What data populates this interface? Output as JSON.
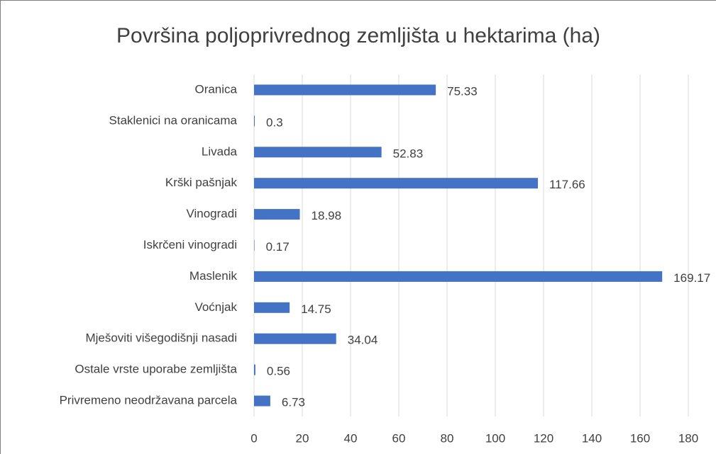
{
  "chart_data": {
    "type": "bar",
    "orientation": "horizontal",
    "title": "Površina poljoprivrednog zemljišta u hektarima (ha)",
    "categories": [
      "Oranica",
      "Staklenici na oranicama",
      "Livada",
      "Krški pašnjak",
      "Vinogradi",
      "Iskrčeni vinogradi",
      "Maslenik",
      "Voćnjak",
      "Mješoviti višegodišnji nasadi",
      "Ostale vrste uporabe zemljišta",
      "Privremeno neodržavana parcela"
    ],
    "values": [
      75.33,
      0.3,
      52.83,
      117.66,
      18.98,
      0.17,
      169.17,
      14.75,
      34.04,
      0.56,
      6.73
    ],
    "color": "#4472c4",
    "xlim": [
      0,
      180
    ],
    "xticks": [
      0,
      20,
      40,
      60,
      80,
      100,
      120,
      140,
      160,
      180
    ],
    "grid": true
  }
}
